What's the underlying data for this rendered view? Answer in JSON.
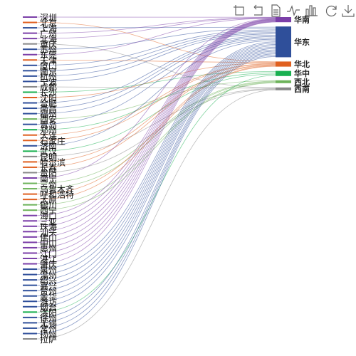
{
  "toolbar": {
    "icons": [
      "rect-select-icon",
      "undo-icon",
      "data-view-icon",
      "line-chart-icon",
      "bar-chart-icon",
      "restore-icon",
      "save-image-icon"
    ]
  },
  "chart_data": {
    "type": "sankey",
    "title": "",
    "sources": [
      "深圳",
      "北京",
      "上海",
      "广州",
      "北海",
      "重庆",
      "苏州",
      "东莞",
      "天津",
      "厦门",
      "南京",
      "杭州",
      "宁波",
      "成都",
      "长沙",
      "沈阳",
      "合肥",
      "南昌",
      "福州",
      "西安",
      "青岛",
      "郑州",
      "大连",
      "石家庄",
      "济南",
      "武汉",
      "昆明",
      "哈尔滨",
      "长春",
      "贵阳",
      "南宁",
      "兰州",
      "乌鲁木齐",
      "呼和浩特",
      "太原",
      "银川",
      "西宁",
      "海口",
      "三亚",
      "珠海",
      "汕头",
      "佛山",
      "中山",
      "惠州",
      "江门",
      "湛江",
      "肇庆",
      "泉州",
      "温州",
      "绍兴",
      "嘉兴",
      "台州",
      "金华",
      "潍坊",
      "烟台",
      "洛阳",
      "徐州",
      "无锡",
      "常州",
      "扬州",
      "拉萨"
    ],
    "targets": [
      {
        "name": "华南",
        "color": "#7b3fa8",
        "value": 1
      },
      {
        "name": "华东",
        "color": "#2f4f9a",
        "value": 6
      },
      {
        "name": "华北",
        "color": "#e06020",
        "value": 1
      },
      {
        "name": "华中",
        "color": "#19b050",
        "value": 1
      },
      {
        "name": "西北",
        "color": "#6db35a",
        "value": 0.5
      },
      {
        "name": "西南",
        "color": "#888888",
        "value": 0.5
      }
    ],
    "links": [
      [
        "深圳",
        "华南"
      ],
      [
        "北京",
        "华北"
      ],
      [
        "上海",
        "华东"
      ],
      [
        "广州",
        "华南"
      ],
      [
        "北海",
        "华南"
      ],
      [
        "重庆",
        "西南"
      ],
      [
        "苏州",
        "华东"
      ],
      [
        "东莞",
        "华南"
      ],
      [
        "天津",
        "华北"
      ],
      [
        "厦门",
        "华东"
      ],
      [
        "南京",
        "华东"
      ],
      [
        "杭州",
        "华东"
      ],
      [
        "宁波",
        "华东"
      ],
      [
        "成都",
        "西南"
      ],
      [
        "长沙",
        "华中"
      ],
      [
        "沈阳",
        "华北"
      ],
      [
        "合肥",
        "华东"
      ],
      [
        "南昌",
        "华东"
      ],
      [
        "福州",
        "华东"
      ],
      [
        "西安",
        "西北"
      ],
      [
        "青岛",
        "华东"
      ],
      [
        "郑州",
        "华中"
      ],
      [
        "大连",
        "华北"
      ],
      [
        "石家庄",
        "华北"
      ],
      [
        "济南",
        "华东"
      ],
      [
        "武汉",
        "华中"
      ],
      [
        "昆明",
        "西南"
      ],
      [
        "哈尔滨",
        "华北"
      ],
      [
        "长春",
        "华北"
      ],
      [
        "贵阳",
        "西南"
      ],
      [
        "南宁",
        "华南"
      ],
      [
        "兰州",
        "西北"
      ],
      [
        "乌鲁木齐",
        "西北"
      ],
      [
        "呼和浩特",
        "华北"
      ],
      [
        "太原",
        "华北"
      ],
      [
        "银川",
        "西北"
      ],
      [
        "西宁",
        "西北"
      ],
      [
        "海口",
        "华南"
      ],
      [
        "三亚",
        "华南"
      ],
      [
        "珠海",
        "华南"
      ],
      [
        "汕头",
        "华南"
      ],
      [
        "佛山",
        "华南"
      ],
      [
        "中山",
        "华南"
      ],
      [
        "惠州",
        "华南"
      ],
      [
        "江门",
        "华南"
      ],
      [
        "湛江",
        "华南"
      ],
      [
        "肇庆",
        "华南"
      ],
      [
        "泉州",
        "华东"
      ],
      [
        "温州",
        "华东"
      ],
      [
        "绍兴",
        "华东"
      ],
      [
        "嘉兴",
        "华东"
      ],
      [
        "台州",
        "华东"
      ],
      [
        "金华",
        "华东"
      ],
      [
        "潍坊",
        "华东"
      ],
      [
        "烟台",
        "华东"
      ],
      [
        "洛阳",
        "华中"
      ],
      [
        "徐州",
        "华东"
      ],
      [
        "无锡",
        "华东"
      ],
      [
        "常州",
        "华东"
      ],
      [
        "扬州",
        "华东"
      ],
      [
        "拉萨",
        "西南"
      ]
    ]
  }
}
